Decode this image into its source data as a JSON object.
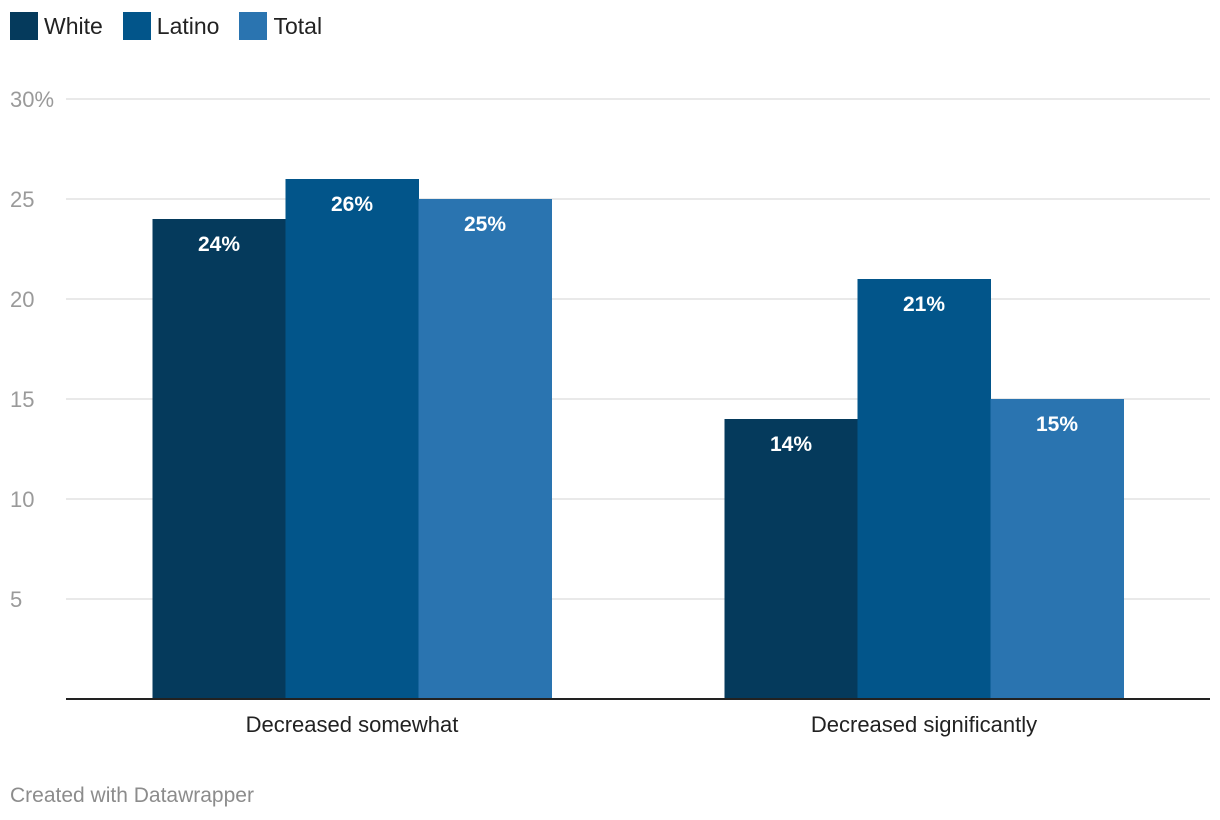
{
  "chart_data": {
    "type": "bar",
    "categories": [
      "Decreased somewhat",
      "Decreased significantly"
    ],
    "series": [
      {
        "name": "White",
        "color": "#053a5c",
        "values": [
          24,
          14
        ],
        "labels": [
          "24%",
          "14%"
        ]
      },
      {
        "name": "Latino",
        "color": "#02558a",
        "values": [
          26,
          21
        ],
        "labels": [
          "26%",
          "21%"
        ]
      },
      {
        "name": "Total",
        "color": "#2a74b0",
        "values": [
          25,
          15
        ],
        "labels": [
          "25%",
          "15%"
        ]
      }
    ],
    "ylim": [
      0,
      30
    ],
    "yticks": [
      {
        "value": 5,
        "label": "5"
      },
      {
        "value": 10,
        "label": "10"
      },
      {
        "value": 15,
        "label": "15"
      },
      {
        "value": 20,
        "label": "20"
      },
      {
        "value": 25,
        "label": "25"
      },
      {
        "value": 30,
        "label": "30%"
      }
    ],
    "grid": true,
    "legend_position": "top-left",
    "title": "",
    "xlabel": "",
    "ylabel": ""
  },
  "legend": {
    "items": [
      {
        "label": "White",
        "color": "#053a5c"
      },
      {
        "label": "Latino",
        "color": "#02558a"
      },
      {
        "label": "Total",
        "color": "#2a74b0"
      }
    ]
  },
  "footer": {
    "credit": "Created with Datawrapper"
  }
}
